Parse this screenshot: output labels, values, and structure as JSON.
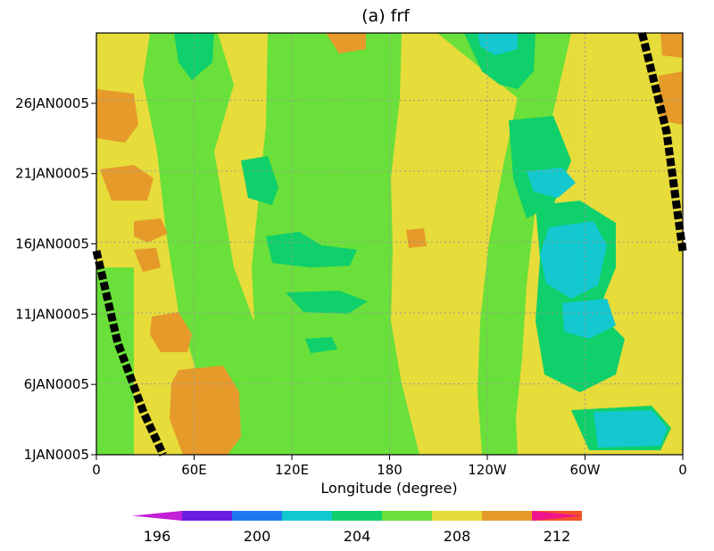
{
  "chart_data": {
    "type": "heatmap",
    "title": "(a)  frf",
    "xlabel": "Longitude (degree)",
    "ylabel": "",
    "x_ticks": [
      "0",
      "60E",
      "120E",
      "180",
      "120W",
      "60W",
      "0"
    ],
    "y_ticks": [
      "1JAN0005",
      "6JAN0005",
      "11JAN0005",
      "16JAN0005",
      "21JAN0005",
      "26JAN0005"
    ],
    "y_tick_days": [
      1,
      6,
      11,
      16,
      21,
      26
    ],
    "y_range_days": [
      1,
      31
    ],
    "x_range_deg": [
      0,
      360
    ],
    "grid": true,
    "colorbar": {
      "levels": [
        195,
        196,
        197,
        198,
        199,
        200,
        201,
        202,
        203,
        204,
        205,
        206,
        207,
        208,
        209,
        210,
        211,
        212,
        213
      ],
      "labels": [
        "196",
        "200",
        "204",
        "208",
        "212"
      ],
      "label_values": [
        196,
        200,
        204,
        208,
        212
      ],
      "colors": [
        "#c21fd6",
        "#6a1ee0",
        "#1f78f0",
        "#13c8cf",
        "#0fd06a",
        "#6ae03a",
        "#e6dc3a",
        "#e59a2a",
        "#f4522a",
        "#f0148c"
      ]
    },
    "bands": [
      {
        "value": 208,
        "color": "#e6dc3a"
      },
      {
        "value": 205,
        "color": "#6ae03a"
      },
      {
        "value": 203,
        "color": "#0fd06a"
      },
      {
        "value": 201,
        "color": "#13c8cf"
      },
      {
        "value": 210,
        "color": "#e59a2a"
      }
    ],
    "annotations": [
      {
        "name": "phase-line-west",
        "points": [
          [
            0,
            15.5
          ],
          [
            13,
            9
          ],
          [
            29,
            4
          ],
          [
            41,
            1
          ]
        ]
      },
      {
        "name": "phase-line-east",
        "points": [
          [
            335,
            31
          ],
          [
            350,
            24
          ],
          [
            360,
            15.5
          ]
        ]
      }
    ]
  }
}
